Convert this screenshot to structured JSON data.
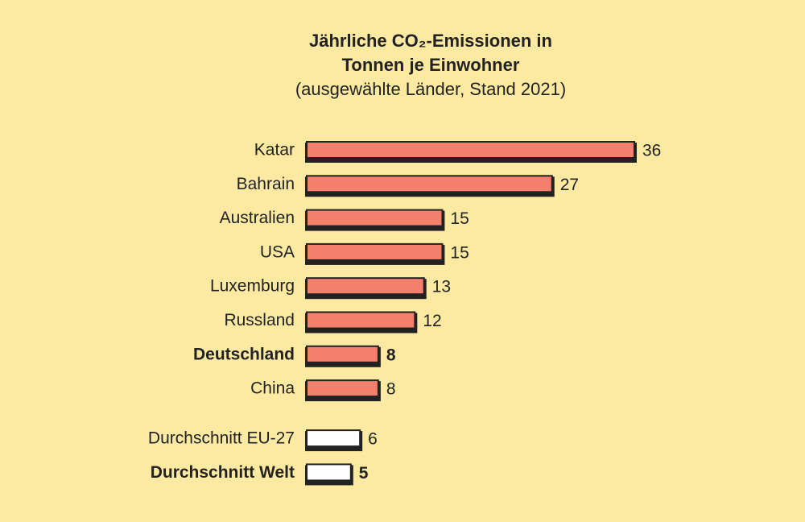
{
  "chart_data": {
    "type": "bar",
    "orientation": "horizontal",
    "title": "Jährliche CO₂-Emissionen in Tonnen je Einwohner",
    "subtitle": "(ausgewählte Länder, Stand 2021)",
    "categories": [
      "Katar",
      "Bahrain",
      "Australien",
      "USA",
      "Luxemburg",
      "Russland",
      "Deutschland",
      "China",
      "Durchschnitt EU-27",
      "Durchschnitt Welt"
    ],
    "values": [
      36,
      27,
      15,
      15,
      13,
      12,
      8,
      8,
      6,
      5
    ],
    "colors": [
      "#f4806b",
      "#f4806b",
      "#f4806b",
      "#f4806b",
      "#f4806b",
      "#f4806b",
      "#f4806b",
      "#f4806b",
      "#ffffff",
      "#ffffff"
    ],
    "emphasis": [
      false,
      false,
      false,
      false,
      false,
      false,
      true,
      false,
      false,
      true
    ]
  }
}
